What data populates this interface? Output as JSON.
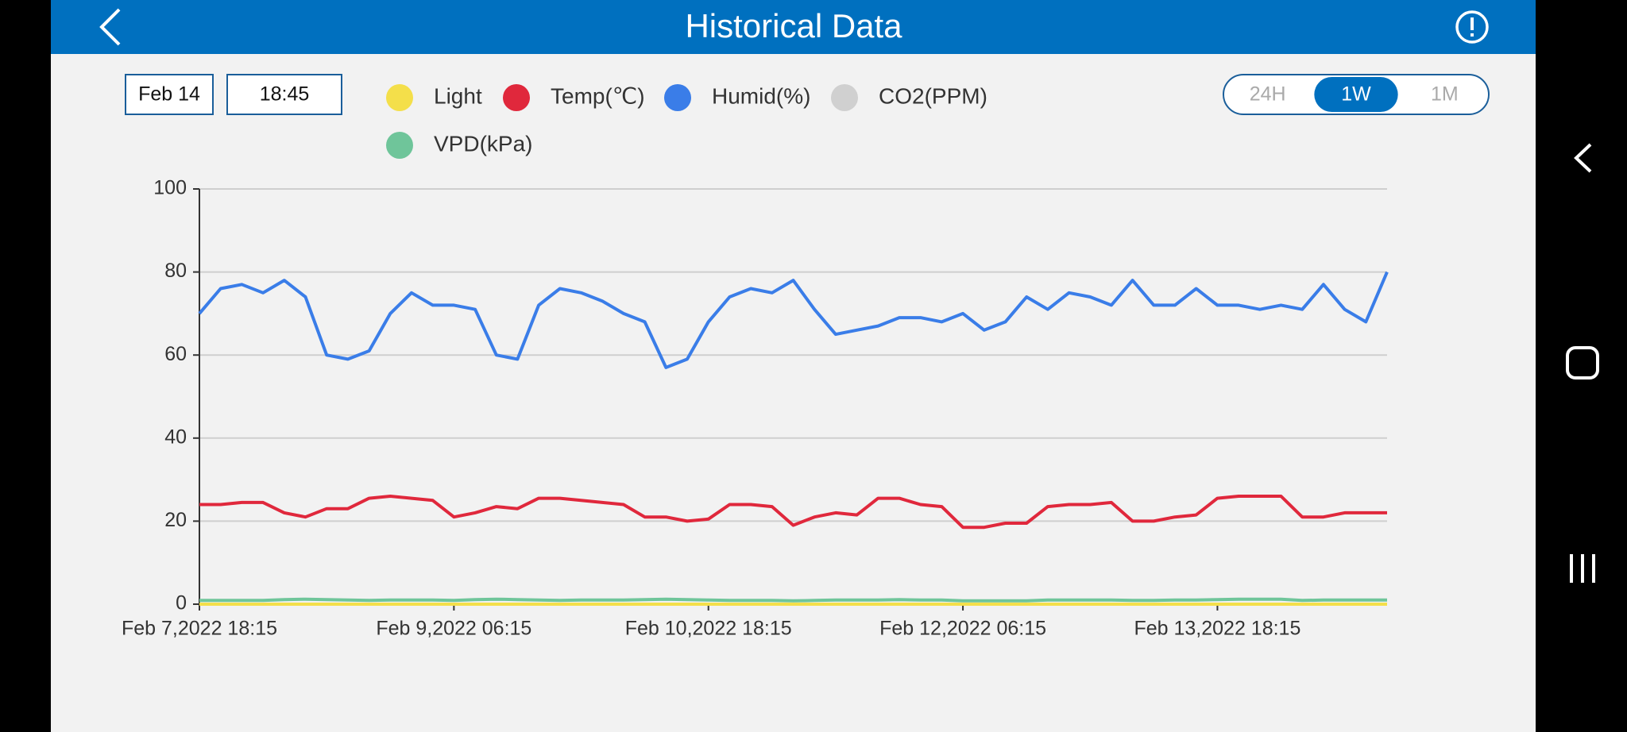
{
  "header": {
    "title": "Historical Data"
  },
  "controls": {
    "date": "Feb 14",
    "time": "18:45",
    "ranges": [
      "24H",
      "1W",
      "1M"
    ],
    "selected_range": 1
  },
  "chart_data": {
    "type": "line",
    "x": [
      "2022-02-07T18:15",
      "2022-02-07T21:15",
      "2022-02-08T00:15",
      "2022-02-08T03:15",
      "2022-02-08T06:15",
      "2022-02-08T09:15",
      "2022-02-08T12:15",
      "2022-02-08T15:15",
      "2022-02-08T18:15",
      "2022-02-08T21:15",
      "2022-02-09T00:15",
      "2022-02-09T03:15",
      "2022-02-09T06:15",
      "2022-02-09T09:15",
      "2022-02-09T12:15",
      "2022-02-09T15:15",
      "2022-02-09T18:15",
      "2022-02-09T21:15",
      "2022-02-10T00:15",
      "2022-02-10T03:15",
      "2022-02-10T06:15",
      "2022-02-10T09:15",
      "2022-02-10T12:15",
      "2022-02-10T15:15",
      "2022-02-10T18:15",
      "2022-02-10T21:15",
      "2022-02-11T00:15",
      "2022-02-11T03:15",
      "2022-02-11T06:15",
      "2022-02-11T09:15",
      "2022-02-11T12:15",
      "2022-02-11T15:15",
      "2022-02-11T18:15",
      "2022-02-11T21:15",
      "2022-02-12T00:15",
      "2022-02-12T03:15",
      "2022-02-12T06:15",
      "2022-02-12T09:15",
      "2022-02-12T12:15",
      "2022-02-12T15:15",
      "2022-02-12T18:15",
      "2022-02-12T21:15",
      "2022-02-13T00:15",
      "2022-02-13T03:15",
      "2022-02-13T06:15",
      "2022-02-13T09:15",
      "2022-02-13T12:15",
      "2022-02-13T15:15",
      "2022-02-13T18:15",
      "2022-02-13T21:15",
      "2022-02-14T00:15",
      "2022-02-14T03:15",
      "2022-02-14T06:15",
      "2022-02-14T09:15",
      "2022-02-14T12:15",
      "2022-02-14T15:15",
      "2022-02-14T18:15"
    ],
    "series": [
      {
        "name": "Light",
        "color": "#f4df4a",
        "values": [
          0,
          0,
          0,
          0,
          0,
          0,
          0,
          0,
          0,
          0,
          0,
          0,
          0,
          0,
          0,
          0,
          0,
          0,
          0,
          0,
          0,
          0,
          0,
          0,
          0,
          0,
          0,
          0,
          0,
          0,
          0,
          0,
          0,
          0,
          0,
          0,
          0,
          0,
          0,
          0,
          0,
          0,
          0,
          0,
          0,
          0,
          0,
          0,
          0,
          0,
          0,
          0,
          0,
          0,
          0,
          0,
          0
        ]
      },
      {
        "name": "Temp(℃)",
        "color": "#e0283c",
        "values": [
          24,
          24,
          24.5,
          24.5,
          22,
          21,
          23,
          23,
          25.5,
          26,
          25.5,
          25,
          21,
          22,
          23.5,
          23,
          25.5,
          25.5,
          25,
          24.5,
          24,
          21,
          21,
          20,
          20.5,
          24,
          24,
          23.5,
          19,
          21,
          22,
          21.5,
          25.5,
          25.5,
          24,
          23.5,
          18.5,
          18.5,
          19.5,
          19.5,
          23.5,
          24,
          24,
          24.5,
          20,
          20,
          21,
          21.5,
          25.5,
          26,
          26,
          26,
          21,
          21,
          22,
          22,
          22
        ]
      },
      {
        "name": "Humid(%)",
        "color": "#3a7de8",
        "values": [
          70,
          76,
          77,
          75,
          78,
          74,
          60,
          59,
          61,
          70,
          75,
          72,
          72,
          71,
          60,
          59,
          72,
          76,
          75,
          73,
          70,
          68,
          57,
          59,
          68,
          74,
          76,
          75,
          78,
          71,
          65,
          66,
          67,
          69,
          69,
          68,
          70,
          66,
          68,
          74,
          71,
          75,
          74,
          72,
          78,
          72,
          72,
          76,
          72,
          72,
          71,
          72,
          71,
          77,
          71,
          68,
          80
        ]
      },
      {
        "name": "CO2(PPM)",
        "color": "#d0d0d0",
        "visible": false
      },
      {
        "name": "VPD(kPa)",
        "color": "#6fc59a",
        "values": [
          0.9,
          0.9,
          0.9,
          0.9,
          1.1,
          1.2,
          1.1,
          1,
          0.9,
          1,
          1,
          1,
          0.9,
          1.1,
          1.2,
          1.1,
          1,
          0.9,
          1,
          1,
          1,
          1.1,
          1.2,
          1.1,
          1,
          0.9,
          0.9,
          0.9,
          0.8,
          0.9,
          1,
          1,
          1,
          1.1,
          1,
          1,
          0.8,
          0.8,
          0.8,
          0.8,
          1,
          1,
          1,
          1,
          0.9,
          0.9,
          1,
          1,
          1.1,
          1.2,
          1.2,
          1.2,
          0.9,
          1,
          1,
          1,
          1
        ]
      }
    ],
    "ylim": [
      0,
      100
    ],
    "yticks": [
      0,
      20,
      40,
      60,
      80,
      100
    ],
    "xlim": [
      "2022-02-07T18:15",
      "2022-02-14T18:15"
    ],
    "xticks": [
      {
        "value": "2022-02-07T18:15",
        "label": "Feb 7,2022 18:15"
      },
      {
        "value": "2022-02-09T06:15",
        "label": "Feb 9,2022 06:15"
      },
      {
        "value": "2022-02-10T18:15",
        "label": "Feb 10,2022 18:15"
      },
      {
        "value": "2022-02-12T06:15",
        "label": "Feb 12,2022 06:15"
      },
      {
        "value": "2022-02-13T18:15",
        "label": "Feb 13,2022 18:15"
      }
    ],
    "grid": true
  }
}
